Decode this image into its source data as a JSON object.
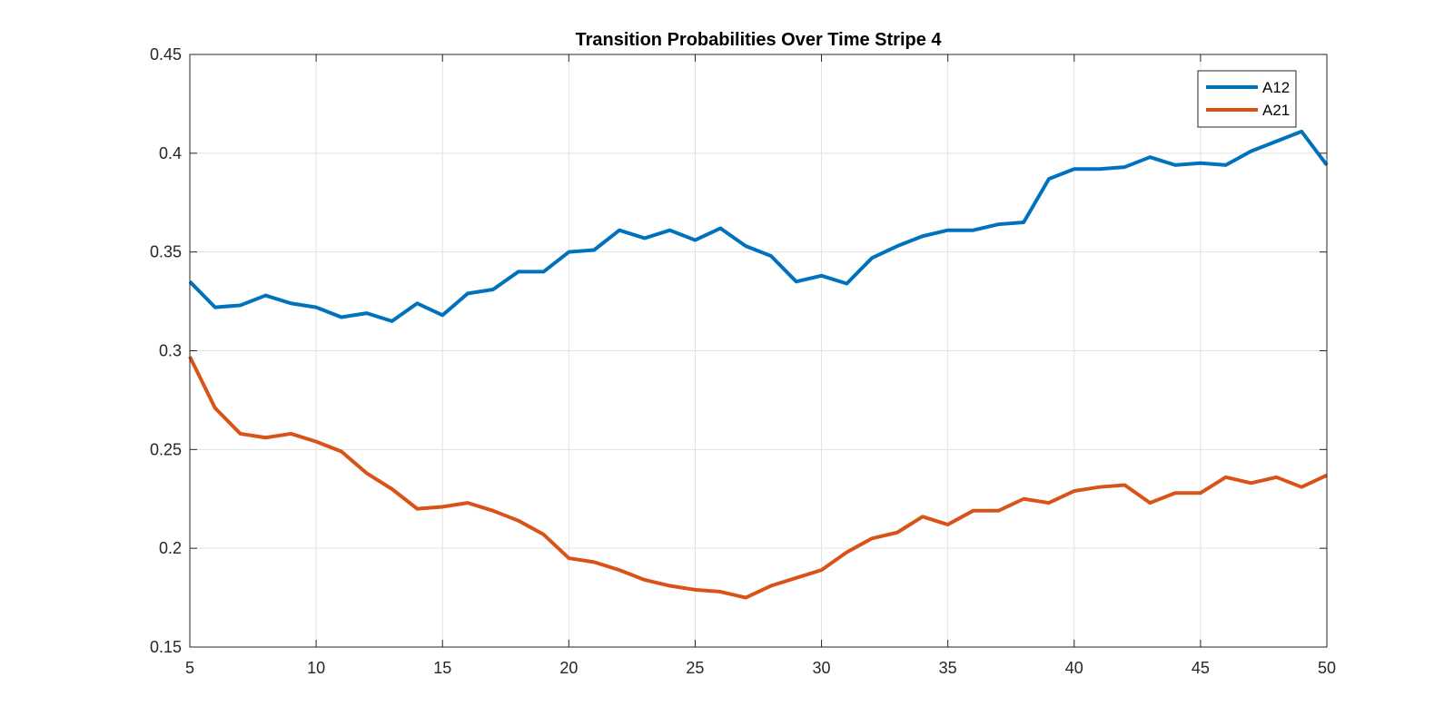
{
  "chart_data": {
    "type": "line",
    "title": "Transition Probabilities Over Time Stripe 4",
    "xlabel": "",
    "ylabel": "",
    "xlim": [
      5,
      50
    ],
    "ylim": [
      0.15,
      0.45
    ],
    "xticks": [
      5,
      10,
      15,
      20,
      25,
      30,
      35,
      40,
      45,
      50
    ],
    "yticks": [
      0.15,
      0.2,
      0.25,
      0.3,
      0.35,
      0.4,
      0.45
    ],
    "xtick_labels": [
      "5",
      "10",
      "15",
      "20",
      "25",
      "30",
      "35",
      "40",
      "45",
      "50"
    ],
    "ytick_labels": [
      "0.15",
      "0.2",
      "0.25",
      "0.3",
      "0.35",
      "0.4",
      "0.45"
    ],
    "grid": true,
    "legend_position": "top-right",
    "x": [
      5,
      6,
      7,
      8,
      9,
      10,
      11,
      12,
      13,
      14,
      15,
      16,
      17,
      18,
      19,
      20,
      21,
      22,
      23,
      24,
      25,
      26,
      27,
      28,
      29,
      30,
      31,
      32,
      33,
      34,
      35,
      36,
      37,
      38,
      39,
      40,
      41,
      42,
      43,
      44,
      45,
      46,
      47,
      48,
      49,
      50
    ],
    "series": [
      {
        "name": "A12",
        "color": "#0072BD",
        "values": [
          0.335,
          0.322,
          0.323,
          0.328,
          0.324,
          0.322,
          0.317,
          0.319,
          0.315,
          0.324,
          0.318,
          0.329,
          0.331,
          0.34,
          0.34,
          0.35,
          0.351,
          0.361,
          0.357,
          0.361,
          0.356,
          0.362,
          0.353,
          0.348,
          0.335,
          0.338,
          0.334,
          0.347,
          0.353,
          0.358,
          0.361,
          0.361,
          0.364,
          0.365,
          0.387,
          0.392,
          0.392,
          0.393,
          0.398,
          0.394,
          0.395,
          0.394,
          0.401,
          0.406,
          0.411,
          0.394
        ]
      },
      {
        "name": "A21",
        "color": "#D95319",
        "values": [
          0.297,
          0.271,
          0.258,
          0.256,
          0.258,
          0.254,
          0.249,
          0.238,
          0.23,
          0.22,
          0.221,
          0.223,
          0.219,
          0.214,
          0.207,
          0.195,
          0.193,
          0.189,
          0.184,
          0.181,
          0.179,
          0.178,
          0.175,
          0.181,
          0.185,
          0.189,
          0.198,
          0.205,
          0.208,
          0.216,
          0.212,
          0.219,
          0.219,
          0.225,
          0.223,
          0.229,
          0.231,
          0.232,
          0.223,
          0.228,
          0.228,
          0.236,
          0.233,
          0.236,
          0.231,
          0.237
        ]
      }
    ]
  }
}
